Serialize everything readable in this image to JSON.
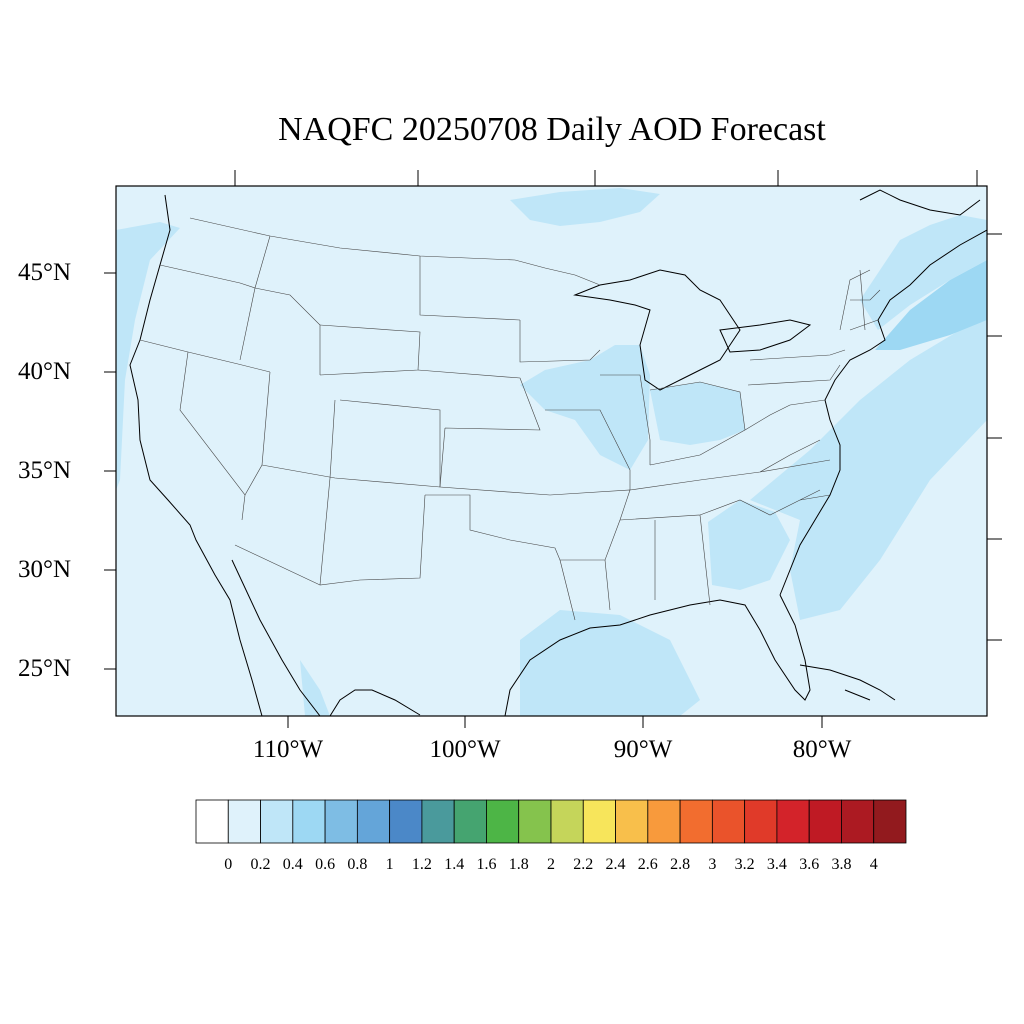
{
  "title": "NAQFC 20250708 Daily AOD Forecast",
  "map": {
    "projection": "Lambert conformal (CONUS)",
    "lat_range": [
      23,
      49
    ],
    "lon_range": [
      -119,
      -71
    ],
    "lat_labels": [
      "45°N",
      "40°N",
      "35°N",
      "30°N",
      "25°N"
    ],
    "lon_labels": [
      "110°W",
      "100°W",
      "90°W",
      "80°W"
    ],
    "background_aod_color": "#dff2fb",
    "features": [
      "coastlines",
      "state-boundaries",
      "country-boundaries",
      "great-lakes"
    ]
  },
  "aod_regions": [
    {
      "name": "upper-midwest-iowa-illinois",
      "level": 0.2
    },
    {
      "name": "indiana-ohio",
      "level": 0.2
    },
    {
      "name": "georgia-south-carolina",
      "level": 0.2
    },
    {
      "name": "gulf-of-mexico",
      "level": 0.2
    },
    {
      "name": "atlantic-coast-plume",
      "level": 0.2
    },
    {
      "name": "new-england-offshore",
      "level": 0.4
    },
    {
      "name": "northern-canada-ontario",
      "level": 0.2
    },
    {
      "name": "pacific-coast",
      "level": 0.2
    }
  ],
  "colorbar": {
    "labels": [
      "0",
      "0.2",
      "0.4",
      "0.6",
      "0.8",
      "1",
      "1.2",
      "1.4",
      "1.6",
      "1.8",
      "2",
      "2.2",
      "2.4",
      "2.6",
      "2.8",
      "3",
      "3.2",
      "3.4",
      "3.6",
      "3.8",
      "4"
    ],
    "colors": [
      "#ffffff",
      "#dff2fb",
      "#bfe6f8",
      "#9dd8f3",
      "#7ebde4",
      "#64a5d9",
      "#4b88c8",
      "#4a9a9c",
      "#45a470",
      "#4db546",
      "#85c34d",
      "#c5d55a",
      "#f7e55b",
      "#f8bf4b",
      "#f89a3c",
      "#f26d2f",
      "#ea532b",
      "#e03a29",
      "#d3232a",
      "#bf1a24",
      "#ac1a22",
      "#921a1e"
    ]
  }
}
